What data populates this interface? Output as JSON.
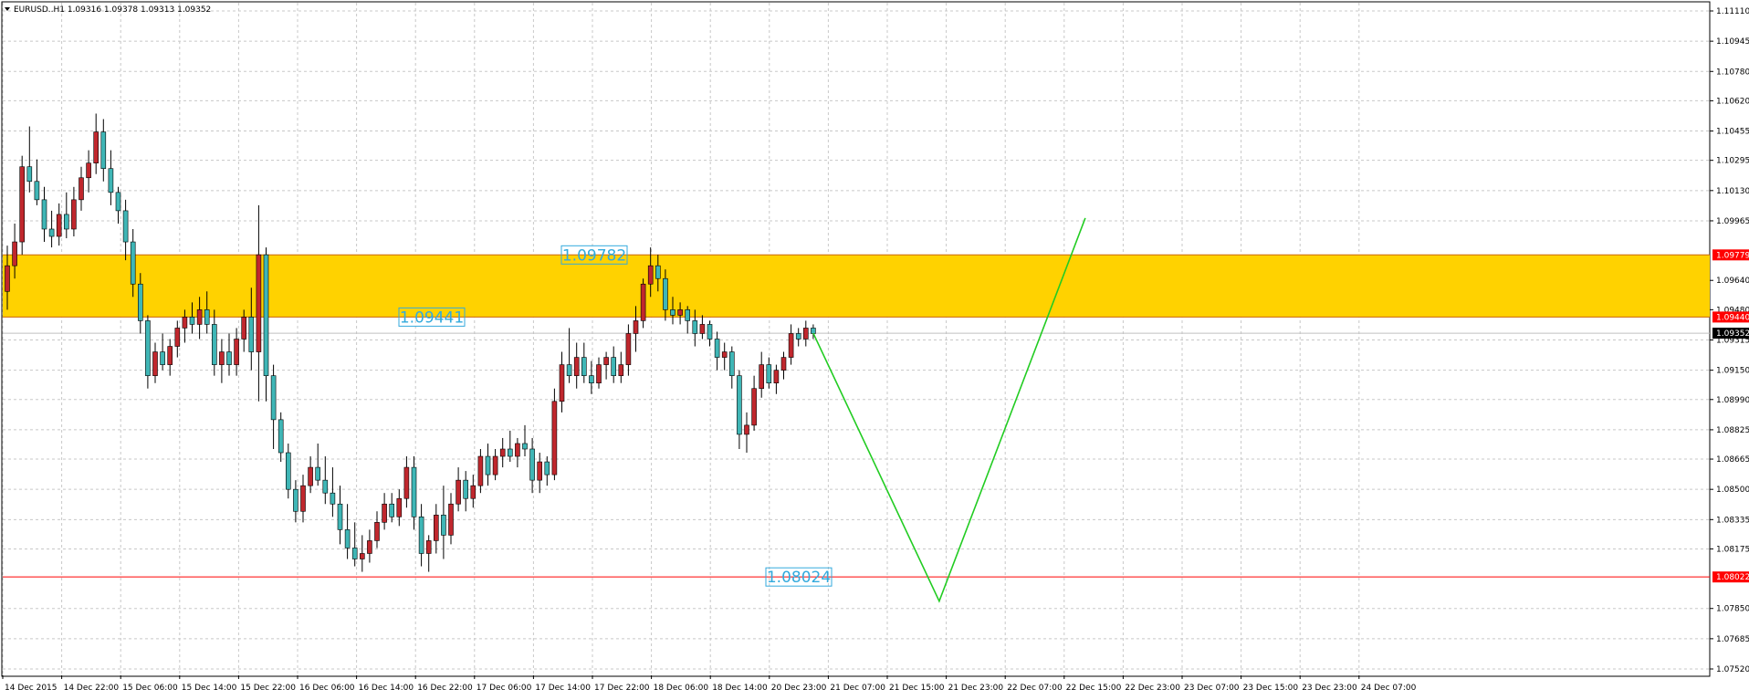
{
  "window": {
    "header_text": "EURUSD..H1  1.09316 1.09378 1.09313 1.09352",
    "menu_icon": "triangle-down-icon"
  },
  "colors": {
    "background": "#ffffff",
    "grid": "#c8c8c8",
    "bull_body": "#c0272d",
    "bear_body": "#3fb6b6",
    "wick": "#000000",
    "zone_fill": "#ffd200",
    "support_line": "#ff0000",
    "bid_line": "#c0c0c0",
    "projection_line": "#22cc22",
    "label_text": "#33aadd",
    "price_tag_red": "#ff0000",
    "price_tag_black": "#000000"
  },
  "chart_data": {
    "type": "candlestick",
    "symbol": "EURUSD..",
    "timeframe": "H1",
    "ohlc_header": {
      "open": 1.09316,
      "high": 1.09378,
      "low": 1.09313,
      "close": 1.09352
    },
    "ylim": [
      1.0752,
      1.1111
    ],
    "y_ticks": [
      1.1111,
      1.10945,
      1.1078,
      1.1062,
      1.10455,
      1.10295,
      1.1013,
      1.09965,
      1.0964,
      1.0948,
      1.09315,
      1.0915,
      1.0899,
      1.08825,
      1.08665,
      1.085,
      1.08335,
      1.08175,
      1.0785,
      1.07685,
      1.0752
    ],
    "y_tick_labels": [
      "1.11110",
      "1.10945",
      "1.10780",
      "1.10620",
      "1.10455",
      "1.10295",
      "1.10130",
      "1.09965",
      "1.09640",
      "1.09480",
      "1.09315",
      "1.09150",
      "1.08990",
      "1.08825",
      "1.08665",
      "1.08500",
      "1.08335",
      "1.08175",
      "1.07850",
      "1.07685",
      "1.07520"
    ],
    "x_tick_labels": [
      "14 Dec 2015",
      "14 Dec 22:00",
      "15 Dec 06:00",
      "15 Dec 14:00",
      "15 Dec 22:00",
      "16 Dec 06:00",
      "16 Dec 14:00",
      "16 Dec 22:00",
      "17 Dec 06:00",
      "17 Dec 14:00",
      "17 Dec 22:00",
      "18 Dec 06:00",
      "18 Dec 14:00",
      "20 Dec 23:00",
      "21 Dec 07:00",
      "21 Dec 15:00",
      "21 Dec 23:00",
      "22 Dec 07:00",
      "22 Dec 15:00",
      "22 Dec 23:00",
      "23 Dec 07:00",
      "23 Dec 15:00",
      "23 Dec 23:00",
      "24 Dec 07:00"
    ],
    "zone": {
      "top": 1.09779,
      "bottom": 1.0944
    },
    "zone_labels": [
      "1.09782",
      "1.09441"
    ],
    "support": {
      "price": 1.08022,
      "label": "1.08024"
    },
    "price_tags": [
      {
        "text": "1.09779",
        "price": 1.09779,
        "style": "red"
      },
      {
        "text": "1.09440",
        "price": 1.0944,
        "style": "red"
      },
      {
        "text": "1.09352",
        "price": 1.09352,
        "style": "black"
      },
      {
        "text": "1.08022",
        "price": 1.08022,
        "style": "red"
      }
    ],
    "bid": 1.09352,
    "projection": {
      "points": [
        [
          0,
          1.09352
        ],
        [
          20,
          1.0789
        ],
        [
          39,
          1.0998
        ]
      ]
    },
    "candles": [
      {
        "o": 1.0958,
        "h": 1.0983,
        "l": 1.0948,
        "c": 1.0972
      },
      {
        "o": 1.0972,
        "h": 1.0995,
        "l": 1.0965,
        "c": 1.0985
      },
      {
        "o": 1.0985,
        "h": 1.1032,
        "l": 1.0978,
        "c": 1.1026
      },
      {
        "o": 1.1026,
        "h": 1.1048,
        "l": 1.1012,
        "c": 1.1018
      },
      {
        "o": 1.1018,
        "h": 1.103,
        "l": 1.1005,
        "c": 1.1008
      },
      {
        "o": 1.1008,
        "h": 1.1015,
        "l": 1.0985,
        "c": 1.0992
      },
      {
        "o": 1.0992,
        "h": 1.1002,
        "l": 1.0982,
        "c": 1.0988
      },
      {
        "o": 1.0988,
        "h": 1.1006,
        "l": 1.0983,
        "c": 1.1
      },
      {
        "o": 1.1,
        "h": 1.1012,
        "l": 1.0987,
        "c": 1.0992
      },
      {
        "o": 1.0992,
        "h": 1.1015,
        "l": 1.0988,
        "c": 1.1008
      },
      {
        "o": 1.1008,
        "h": 1.1026,
        "l": 1.1002,
        "c": 1.102
      },
      {
        "o": 1.102,
        "h": 1.1035,
        "l": 1.1012,
        "c": 1.1028
      },
      {
        "o": 1.1028,
        "h": 1.1055,
        "l": 1.1022,
        "c": 1.1045
      },
      {
        "o": 1.1045,
        "h": 1.1052,
        "l": 1.1018,
        "c": 1.1025
      },
      {
        "o": 1.1025,
        "h": 1.1035,
        "l": 1.1005,
        "c": 1.1012
      },
      {
        "o": 1.1012,
        "h": 1.1015,
        "l": 1.0995,
        "c": 1.1002
      },
      {
        "o": 1.1002,
        "h": 1.1008,
        "l": 1.0975,
        "c": 1.0985
      },
      {
        "o": 1.0985,
        "h": 1.0992,
        "l": 1.0955,
        "c": 1.0962
      },
      {
        "o": 1.0962,
        "h": 1.0968,
        "l": 1.0935,
        "c": 1.0942
      },
      {
        "o": 1.0942,
        "h": 1.0945,
        "l": 1.0905,
        "c": 1.0912
      },
      {
        "o": 1.0912,
        "h": 1.093,
        "l": 1.0908,
        "c": 1.0925
      },
      {
        "o": 1.0925,
        "h": 1.0935,
        "l": 1.0915,
        "c": 1.0918
      },
      {
        "o": 1.0918,
        "h": 1.0932,
        "l": 1.0912,
        "c": 1.0928
      },
      {
        "o": 1.0928,
        "h": 1.0942,
        "l": 1.0922,
        "c": 1.0938
      },
      {
        "o": 1.0938,
        "h": 1.0948,
        "l": 1.093,
        "c": 1.0944
      },
      {
        "o": 1.0944,
        "h": 1.0952,
        "l": 1.0935,
        "c": 1.094
      },
      {
        "o": 1.094,
        "h": 1.0955,
        "l": 1.0932,
        "c": 1.0948
      },
      {
        "o": 1.0948,
        "h": 1.0958,
        "l": 1.0935,
        "c": 1.094
      },
      {
        "o": 1.094,
        "h": 1.0948,
        "l": 1.0912,
        "c": 1.0918
      },
      {
        "o": 1.0918,
        "h": 1.0932,
        "l": 1.0908,
        "c": 1.0925
      },
      {
        "o": 1.0925,
        "h": 1.0935,
        "l": 1.0912,
        "c": 1.0918
      },
      {
        "o": 1.0918,
        "h": 1.0938,
        "l": 1.0912,
        "c": 1.0932
      },
      {
        "o": 1.0932,
        "h": 1.0948,
        "l": 1.0925,
        "c": 1.0944
      },
      {
        "o": 1.0944,
        "h": 1.096,
        "l": 1.0915,
        "c": 1.0925
      },
      {
        "o": 1.0925,
        "h": 1.1005,
        "l": 1.0898,
        "c": 1.0978
      },
      {
        "o": 1.0978,
        "h": 1.0982,
        "l": 1.0898,
        "c": 1.0912
      },
      {
        "o": 1.0912,
        "h": 1.0918,
        "l": 1.0872,
        "c": 1.0888
      },
      {
        "o": 1.0888,
        "h": 1.0892,
        "l": 1.0865,
        "c": 1.087
      },
      {
        "o": 1.087,
        "h": 1.0875,
        "l": 1.0845,
        "c": 1.085
      },
      {
        "o": 1.085,
        "h": 1.0855,
        "l": 1.0832,
        "c": 1.0838
      },
      {
        "o": 1.0838,
        "h": 1.0858,
        "l": 1.0832,
        "c": 1.0852
      },
      {
        "o": 1.0852,
        "h": 1.0868,
        "l": 1.0848,
        "c": 1.0862
      },
      {
        "o": 1.0862,
        "h": 1.0875,
        "l": 1.0852,
        "c": 1.0855
      },
      {
        "o": 1.0855,
        "h": 1.0868,
        "l": 1.0842,
        "c": 1.0848
      },
      {
        "o": 1.0848,
        "h": 1.0862,
        "l": 1.0835,
        "c": 1.0842
      },
      {
        "o": 1.0842,
        "h": 1.0852,
        "l": 1.082,
        "c": 1.0828
      },
      {
        "o": 1.0828,
        "h": 1.0842,
        "l": 1.0812,
        "c": 1.0818
      },
      {
        "o": 1.0818,
        "h": 1.0832,
        "l": 1.0808,
        "c": 1.0812
      },
      {
        "o": 1.0812,
        "h": 1.0825,
        "l": 1.0805,
        "c": 1.0815
      },
      {
        "o": 1.0815,
        "h": 1.0828,
        "l": 1.081,
        "c": 1.0822
      },
      {
        "o": 1.0822,
        "h": 1.0838,
        "l": 1.0818,
        "c": 1.0832
      },
      {
        "o": 1.0832,
        "h": 1.0848,
        "l": 1.0828,
        "c": 1.0842
      },
      {
        "o": 1.0842,
        "h": 1.0848,
        "l": 1.0832,
        "c": 1.0835
      },
      {
        "o": 1.0835,
        "h": 1.085,
        "l": 1.083,
        "c": 1.0845
      },
      {
        "o": 1.0845,
        "h": 1.0868,
        "l": 1.084,
        "c": 1.0862
      },
      {
        "o": 1.0862,
        "h": 1.0868,
        "l": 1.0828,
        "c": 1.0835
      },
      {
        "o": 1.0835,
        "h": 1.0842,
        "l": 1.0808,
        "c": 1.0815
      },
      {
        "o": 1.0815,
        "h": 1.0825,
        "l": 1.0805,
        "c": 1.0822
      },
      {
        "o": 1.0822,
        "h": 1.0842,
        "l": 1.0815,
        "c": 1.0836
      },
      {
        "o": 1.0836,
        "h": 1.0852,
        "l": 1.0812,
        "c": 1.0825
      },
      {
        "o": 1.0825,
        "h": 1.0848,
        "l": 1.082,
        "c": 1.0842
      },
      {
        "o": 1.0842,
        "h": 1.0862,
        "l": 1.0838,
        "c": 1.0855
      },
      {
        "o": 1.0855,
        "h": 1.086,
        "l": 1.0838,
        "c": 1.0845
      },
      {
        "o": 1.0845,
        "h": 1.0858,
        "l": 1.084,
        "c": 1.0852
      },
      {
        "o": 1.0852,
        "h": 1.0872,
        "l": 1.0848,
        "c": 1.0868
      },
      {
        "o": 1.0868,
        "h": 1.0875,
        "l": 1.0852,
        "c": 1.0858
      },
      {
        "o": 1.0858,
        "h": 1.0872,
        "l": 1.0855,
        "c": 1.0868
      },
      {
        "o": 1.0868,
        "h": 1.0878,
        "l": 1.0862,
        "c": 1.0872
      },
      {
        "o": 1.0872,
        "h": 1.0882,
        "l": 1.0865,
        "c": 1.0868
      },
      {
        "o": 1.0868,
        "h": 1.0878,
        "l": 1.0862,
        "c": 1.0875
      },
      {
        "o": 1.0875,
        "h": 1.0885,
        "l": 1.0868,
        "c": 1.0872
      },
      {
        "o": 1.0872,
        "h": 1.0878,
        "l": 1.0848,
        "c": 1.0855
      },
      {
        "o": 1.0855,
        "h": 1.087,
        "l": 1.0848,
        "c": 1.0865
      },
      {
        "o": 1.0865,
        "h": 1.0868,
        "l": 1.0852,
        "c": 1.0858
      },
      {
        "o": 1.0858,
        "h": 1.0905,
        "l": 1.0855,
        "c": 1.0898
      },
      {
        "o": 1.0898,
        "h": 1.0925,
        "l": 1.0892,
        "c": 1.0918
      },
      {
        "o": 1.0918,
        "h": 1.0938,
        "l": 1.0908,
        "c": 1.0912
      },
      {
        "o": 1.0912,
        "h": 1.093,
        "l": 1.0905,
        "c": 1.0922
      },
      {
        "o": 1.0922,
        "h": 1.093,
        "l": 1.0908,
        "c": 1.0912
      },
      {
        "o": 1.0912,
        "h": 1.092,
        "l": 1.0902,
        "c": 1.0908
      },
      {
        "o": 1.0908,
        "h": 1.0922,
        "l": 1.0905,
        "c": 1.0918
      },
      {
        "o": 1.0918,
        "h": 1.0925,
        "l": 1.091,
        "c": 1.0922
      },
      {
        "o": 1.0922,
        "h": 1.0928,
        "l": 1.0908,
        "c": 1.0912
      },
      {
        "o": 1.0912,
        "h": 1.0925,
        "l": 1.0908,
        "c": 1.0918
      },
      {
        "o": 1.0918,
        "h": 1.094,
        "l": 1.0912,
        "c": 1.0935
      },
      {
        "o": 1.0935,
        "h": 1.095,
        "l": 1.0925,
        "c": 1.0942
      },
      {
        "o": 1.0942,
        "h": 1.0965,
        "l": 1.0938,
        "c": 1.0962
      },
      {
        "o": 1.0962,
        "h": 1.0982,
        "l": 1.0955,
        "c": 1.0972
      },
      {
        "o": 1.0972,
        "h": 1.0978,
        "l": 1.0958,
        "c": 1.0965
      },
      {
        "o": 1.0965,
        "h": 1.097,
        "l": 1.0942,
        "c": 1.0948
      },
      {
        "o": 1.0948,
        "h": 1.0955,
        "l": 1.094,
        "c": 1.0945
      },
      {
        "o": 1.0945,
        "h": 1.0952,
        "l": 1.094,
        "c": 1.0948
      },
      {
        "o": 1.0948,
        "h": 1.095,
        "l": 1.0935,
        "c": 1.0942
      },
      {
        "o": 1.0942,
        "h": 1.0948,
        "l": 1.0928,
        "c": 1.0935
      },
      {
        "o": 1.0935,
        "h": 1.0945,
        "l": 1.0932,
        "c": 1.094
      },
      {
        "o": 1.094,
        "h": 1.0942,
        "l": 1.0928,
        "c": 1.0932
      },
      {
        "o": 1.0932,
        "h": 1.0936,
        "l": 1.0915,
        "c": 1.0922
      },
      {
        "o": 1.0922,
        "h": 1.093,
        "l": 1.0915,
        "c": 1.0925
      },
      {
        "o": 1.0925,
        "h": 1.0928,
        "l": 1.0905,
        "c": 1.0912
      },
      {
        "o": 1.0912,
        "h": 1.0915,
        "l": 1.0872,
        "c": 1.088
      },
      {
        "o": 1.088,
        "h": 1.0892,
        "l": 1.087,
        "c": 1.0885
      },
      {
        "o": 1.0885,
        "h": 1.0912,
        "l": 1.0882,
        "c": 1.0905
      },
      {
        "o": 1.0905,
        "h": 1.0925,
        "l": 1.09,
        "c": 1.0918
      },
      {
        "o": 1.0918,
        "h": 1.0922,
        "l": 1.0905,
        "c": 1.0908
      },
      {
        "o": 1.0908,
        "h": 1.0918,
        "l": 1.0902,
        "c": 1.0915
      },
      {
        "o": 1.0915,
        "h": 1.0925,
        "l": 1.091,
        "c": 1.0922
      },
      {
        "o": 1.0922,
        "h": 1.094,
        "l": 1.0918,
        "c": 1.0935
      },
      {
        "o": 1.0935,
        "h": 1.0938,
        "l": 1.0928,
        "c": 1.0932
      },
      {
        "o": 1.0932,
        "h": 1.0942,
        "l": 1.0928,
        "c": 1.0938
      },
      {
        "o": 1.0938,
        "h": 1.094,
        "l": 1.0932,
        "c": 1.0935
      }
    ]
  }
}
